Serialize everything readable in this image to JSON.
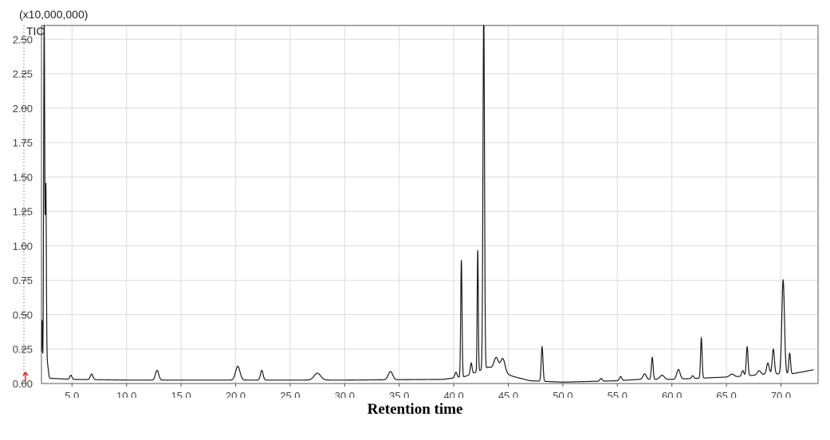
{
  "chart_data": {
    "type": "line",
    "scale_label": "(x10,000,000)",
    "series_label": "TIC",
    "xlabel": "Retention time",
    "xlim": [
      2.2,
      73.4
    ],
    "ylim": [
      0,
      2.6
    ],
    "x_ticks": [
      "5.0",
      "10.0",
      "15.0",
      "20.0",
      "25.0",
      "30.0",
      "35.0",
      "40.0",
      "45.0",
      "50.0",
      "55.0",
      "60.0",
      "65.0",
      "70.0"
    ],
    "x_tick_values": [
      5,
      10,
      15,
      20,
      25,
      30,
      35,
      40,
      45,
      50,
      55,
      60,
      65,
      70
    ],
    "y_ticks": [
      "0.00",
      "0.25",
      "0.50",
      "0.75",
      "1.00",
      "1.25",
      "1.50",
      "1.75",
      "2.00",
      "2.25",
      "2.50"
    ],
    "y_tick_values": [
      0,
      0.25,
      0.5,
      0.75,
      1.0,
      1.25,
      1.5,
      1.75,
      2.0,
      2.25,
      2.5
    ],
    "grid": true,
    "baseline": [
      [
        2.5,
        0.04
      ],
      [
        5,
        0.03
      ],
      [
        10,
        0.025
      ],
      [
        20,
        0.025
      ],
      [
        30,
        0.025
      ],
      [
        39,
        0.03
      ],
      [
        41,
        0.05
      ],
      [
        43.2,
        0.12
      ],
      [
        45.5,
        0.05
      ],
      [
        47,
        0.02
      ],
      [
        50,
        0.01
      ],
      [
        55,
        0.02
      ],
      [
        57,
        0.03
      ],
      [
        60,
        0.03
      ],
      [
        63,
        0.04
      ],
      [
        66,
        0.05
      ],
      [
        69,
        0.07
      ],
      [
        71,
        0.07
      ],
      [
        73,
        0.1
      ]
    ],
    "peaks": [
      {
        "x": 2.25,
        "y": 0.42,
        "w": 0.04
      },
      {
        "x": 2.45,
        "y": 2.6,
        "w": 0.05
      },
      {
        "x": 2.6,
        "y": 1.37,
        "w": 0.05
      },
      {
        "x": 2.75,
        "y": 0.1,
        "w": 0.08
      },
      {
        "x": 4.9,
        "y": 0.03,
        "w": 0.1
      },
      {
        "x": 6.8,
        "y": 0.04,
        "w": 0.12
      },
      {
        "x": 12.8,
        "y": 0.07,
        "w": 0.15
      },
      {
        "x": 20.2,
        "y": 0.1,
        "w": 0.2
      },
      {
        "x": 22.4,
        "y": 0.07,
        "w": 0.12
      },
      {
        "x": 27.5,
        "y": 0.05,
        "w": 0.3
      },
      {
        "x": 34.2,
        "y": 0.06,
        "w": 0.2
      },
      {
        "x": 40.2,
        "y": 0.04,
        "w": 0.1
      },
      {
        "x": 40.7,
        "y": 0.85,
        "w": 0.06
      },
      {
        "x": 41.6,
        "y": 0.08,
        "w": 0.08
      },
      {
        "x": 42.2,
        "y": 0.88,
        "w": 0.05
      },
      {
        "x": 42.75,
        "y": 2.6,
        "w": 0.07
      },
      {
        "x": 43.9,
        "y": 0.09,
        "w": 0.2
      },
      {
        "x": 44.5,
        "y": 0.1,
        "w": 0.2
      },
      {
        "x": 48.1,
        "y": 0.25,
        "w": 0.08
      },
      {
        "x": 53.5,
        "y": 0.02,
        "w": 0.1
      },
      {
        "x": 55.3,
        "y": 0.03,
        "w": 0.1
      },
      {
        "x": 57.5,
        "y": 0.04,
        "w": 0.15
      },
      {
        "x": 58.2,
        "y": 0.16,
        "w": 0.08
      },
      {
        "x": 59.1,
        "y": 0.03,
        "w": 0.2
      },
      {
        "x": 60.6,
        "y": 0.07,
        "w": 0.15
      },
      {
        "x": 61.9,
        "y": 0.02,
        "w": 0.1
      },
      {
        "x": 62.7,
        "y": 0.29,
        "w": 0.07
      },
      {
        "x": 65.5,
        "y": 0.02,
        "w": 0.2
      },
      {
        "x": 66.5,
        "y": 0.04,
        "w": 0.1
      },
      {
        "x": 66.9,
        "y": 0.21,
        "w": 0.08
      },
      {
        "x": 68.0,
        "y": 0.03,
        "w": 0.15
      },
      {
        "x": 68.8,
        "y": 0.08,
        "w": 0.12
      },
      {
        "x": 69.3,
        "y": 0.18,
        "w": 0.1
      },
      {
        "x": 70.2,
        "y": 0.68,
        "w": 0.12
      },
      {
        "x": 70.8,
        "y": 0.15,
        "w": 0.08
      }
    ],
    "colors": {
      "line": "#1a1a1a",
      "grid": "#dcdcdc",
      "axis": "#555555",
      "marker": "#e03030"
    }
  }
}
